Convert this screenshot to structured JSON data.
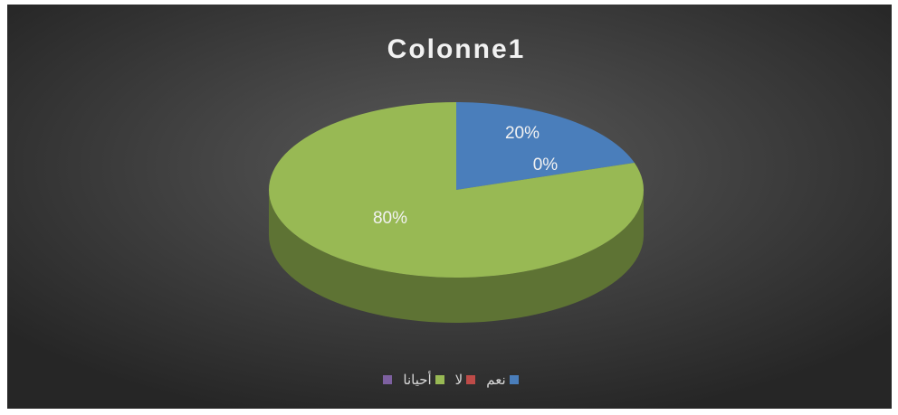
{
  "chart_data": {
    "type": "pie",
    "title": "Colonne1",
    "categories": [
      "نعم",
      "لا",
      "أحيانا",
      null
    ],
    "values": [
      20,
      0,
      80,
      null
    ],
    "value_labels": [
      "20%",
      "0%",
      "80%",
      null
    ],
    "colors": [
      "#4a7ebb",
      "#be4b48",
      "#98b954",
      "#7d60a0"
    ],
    "legend": "bottom"
  }
}
